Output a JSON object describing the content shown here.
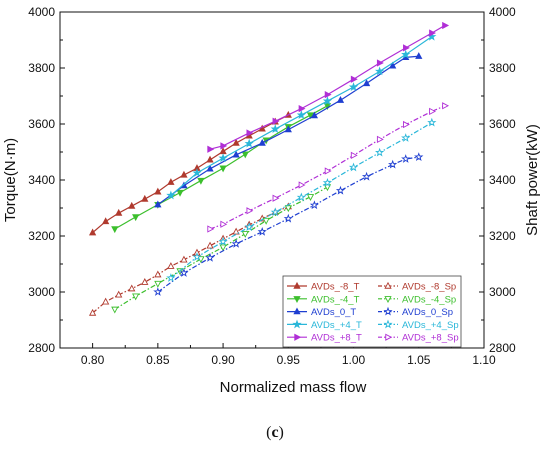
{
  "caption": {
    "open": "(",
    "letter": "c",
    "close": ")"
  },
  "chart_data": {
    "type": "line",
    "xlabel": "Normalized mass flow",
    "ylabel_left": "Torque(N·m)",
    "ylabel_right": "Shaft power(kW)",
    "xlim": [
      0.775,
      1.1
    ],
    "ylim_left": [
      2800,
      4000
    ],
    "ylim_right": [
      2800,
      4000
    ],
    "x_ticks": [
      0.8,
      0.85,
      0.9,
      0.95,
      1.0,
      1.05,
      1.1
    ],
    "x_tick_labels": [
      "0.80",
      "0.85",
      "0.90",
      "0.95",
      "1.00",
      "1.05",
      "1.10"
    ],
    "y_ticks": [
      2800,
      3000,
      3200,
      3400,
      3600,
      3800,
      4000
    ],
    "y_tick_labels": [
      "2800",
      "3000",
      "3200",
      "3400",
      "3600",
      "3800",
      "4000"
    ],
    "grid": false,
    "legend_position": "lower-right",
    "series": [
      {
        "name": "AVDs_-8_T",
        "color": "#b03a2e",
        "marker": "triangle-up",
        "filled": true,
        "dash": "solid",
        "axis": "left",
        "x": [
          0.8,
          0.81,
          0.82,
          0.83,
          0.84,
          0.85,
          0.86,
          0.87,
          0.88,
          0.89,
          0.9,
          0.91,
          0.92,
          0.93,
          0.94,
          0.95
        ],
        "y": [
          3212,
          3252,
          3282,
          3307,
          3332,
          3358,
          3392,
          3418,
          3442,
          3472,
          3502,
          3532,
          3558,
          3583,
          3608,
          3632
        ]
      },
      {
        "name": "AVDs_-8_Sp",
        "color": "#b03a2e",
        "marker": "triangle-up",
        "filled": false,
        "dash": "dashdot",
        "axis": "right",
        "x": [
          0.8,
          0.81,
          0.82,
          0.83,
          0.84,
          0.85,
          0.86,
          0.87,
          0.88,
          0.89,
          0.9,
          0.91,
          0.92,
          0.93,
          0.94,
          0.95
        ],
        "y": [
          2925,
          2965,
          2990,
          3012,
          3035,
          3062,
          3092,
          3115,
          3140,
          3165,
          3190,
          3215,
          3240,
          3262,
          3285,
          3305
        ]
      },
      {
        "name": "AVDs_-4_T",
        "color": "#3cbf2d",
        "marker": "triangle-down",
        "filled": true,
        "dash": "solid",
        "axis": "left",
        "x": [
          0.817,
          0.833,
          0.85,
          0.867,
          0.883,
          0.9,
          0.917,
          0.933,
          0.95,
          0.967,
          0.98
        ],
        "y": [
          3225,
          3268,
          3312,
          3355,
          3398,
          3442,
          3492,
          3542,
          3590,
          3632,
          3665
        ]
      },
      {
        "name": "AVDs_-4_Sp",
        "color": "#3cbf2d",
        "marker": "triangle-down",
        "filled": false,
        "dash": "dashdot",
        "axis": "right",
        "x": [
          0.817,
          0.833,
          0.85,
          0.867,
          0.883,
          0.9,
          0.917,
          0.933,
          0.95,
          0.967,
          0.98
        ],
        "y": [
          2938,
          2985,
          3030,
          3075,
          3118,
          3160,
          3208,
          3255,
          3300,
          3340,
          3375
        ]
      },
      {
        "name": "AVDs_0_T",
        "color": "#1f3fd1",
        "marker": "triangle-up",
        "filled": true,
        "dash": "solid",
        "axis": "left",
        "x": [
          0.85,
          0.87,
          0.89,
          0.91,
          0.93,
          0.95,
          0.97,
          0.99,
          1.01,
          1.03,
          1.04,
          1.05
        ],
        "y": [
          3312,
          3380,
          3440,
          3490,
          3532,
          3580,
          3630,
          3685,
          3745,
          3808,
          3838,
          3842
        ]
      },
      {
        "name": "AVDs_0_Sp",
        "color": "#1f3fd1",
        "marker": "star",
        "filled": false,
        "dash": "dashdot",
        "axis": "right",
        "x": [
          0.85,
          0.87,
          0.89,
          0.91,
          0.93,
          0.95,
          0.97,
          0.99,
          1.01,
          1.03,
          1.04,
          1.05
        ],
        "y": [
          3000,
          3068,
          3122,
          3172,
          3215,
          3262,
          3310,
          3362,
          3412,
          3455,
          3475,
          3482
        ]
      },
      {
        "name": "AVDs_+4_T",
        "color": "#2ab7d9",
        "marker": "star",
        "filled": true,
        "dash": "solid",
        "axis": "left",
        "x": [
          0.86,
          0.88,
          0.9,
          0.92,
          0.94,
          0.96,
          0.98,
          1.0,
          1.02,
          1.04,
          1.06
        ],
        "y": [
          3345,
          3425,
          3478,
          3530,
          3582,
          3632,
          3682,
          3732,
          3788,
          3848,
          3912
        ]
      },
      {
        "name": "AVDs_+4_Sp",
        "color": "#2ab7d9",
        "marker": "star",
        "filled": false,
        "dash": "dashdot",
        "axis": "right",
        "x": [
          0.86,
          0.88,
          0.9,
          0.92,
          0.94,
          0.96,
          0.98,
          1.0,
          1.02,
          1.04,
          1.06
        ],
        "y": [
          3050,
          3125,
          3180,
          3232,
          3285,
          3338,
          3390,
          3445,
          3498,
          3550,
          3605
        ]
      },
      {
        "name": "AVDs_+8_T",
        "color": "#b02fd6",
        "marker": "triangle-right",
        "filled": true,
        "dash": "solid",
        "axis": "left",
        "x": [
          0.89,
          0.9,
          0.92,
          0.94,
          0.96,
          0.98,
          1.0,
          1.02,
          1.04,
          1.06,
          1.07
        ],
        "y": [
          3510,
          3522,
          3568,
          3610,
          3655,
          3705,
          3760,
          3818,
          3872,
          3925,
          3952
        ]
      },
      {
        "name": "AVDs_+8_Sp",
        "color": "#b02fd6",
        "marker": "triangle-right",
        "filled": false,
        "dash": "dashdot",
        "axis": "right",
        "x": [
          0.89,
          0.9,
          0.92,
          0.94,
          0.96,
          0.98,
          1.0,
          1.02,
          1.04,
          1.06,
          1.07
        ],
        "y": [
          3225,
          3242,
          3290,
          3335,
          3382,
          3432,
          3488,
          3545,
          3598,
          3645,
          3665
        ]
      }
    ]
  }
}
